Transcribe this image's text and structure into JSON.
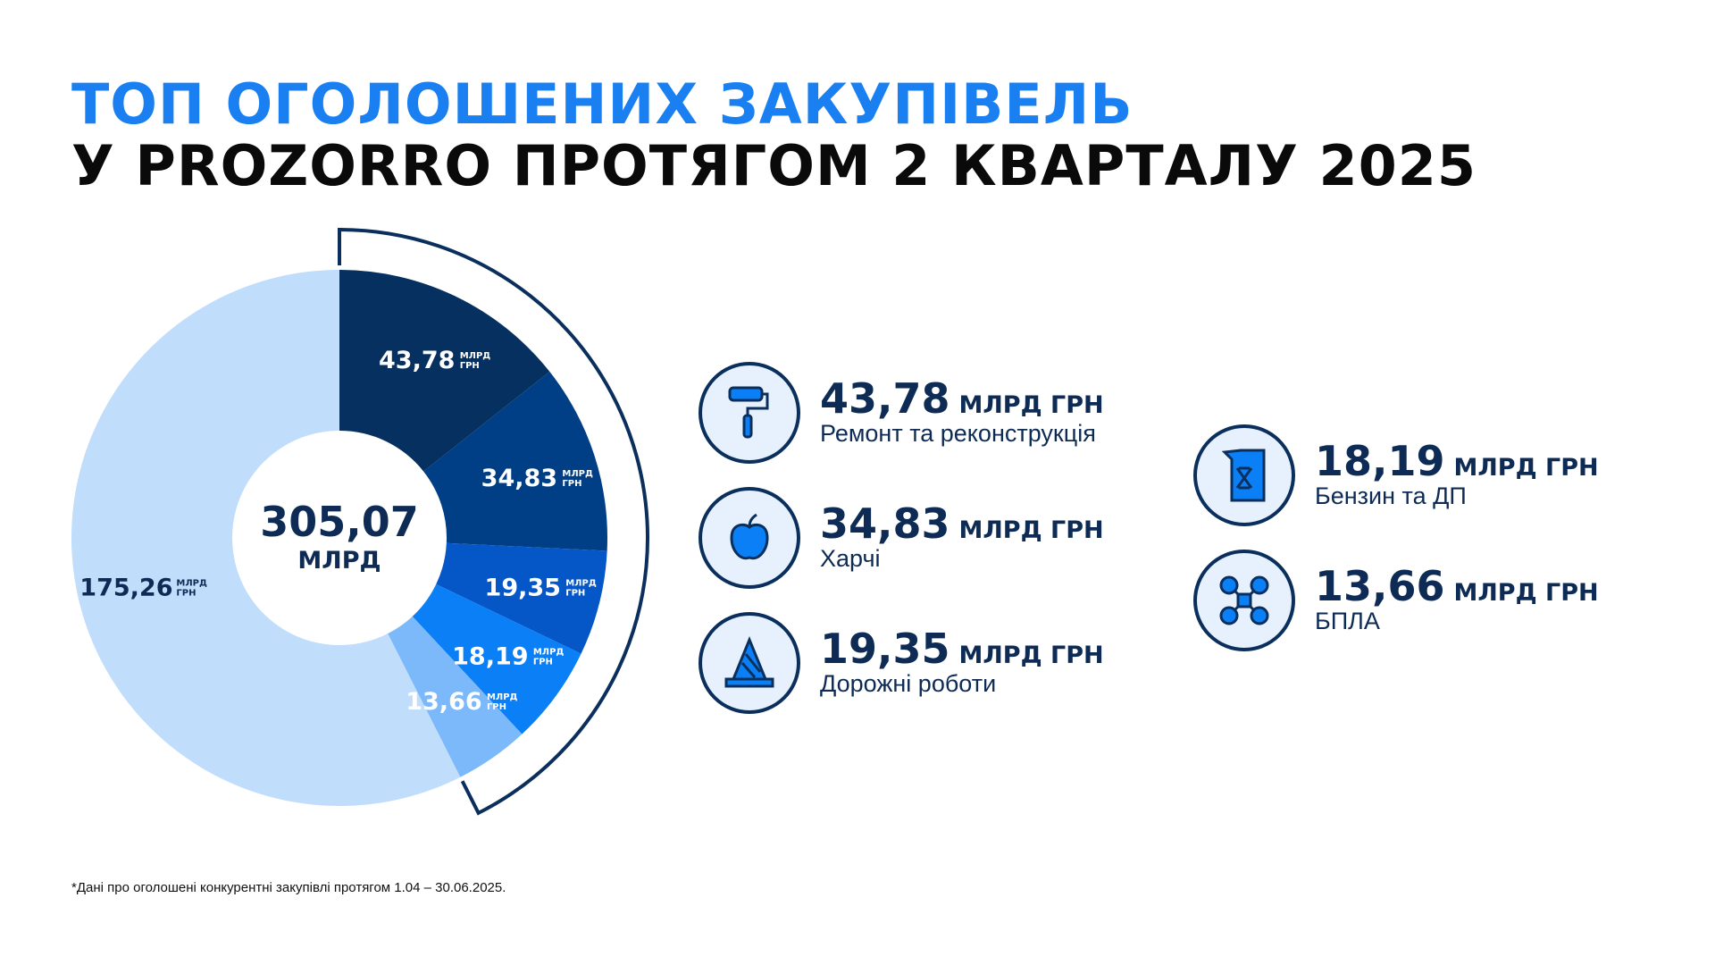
{
  "title": {
    "line1": "ТОП ОГОЛОШЕНИХ ЗАКУПІВЕЛЬ",
    "line2": "У PROZORRO ПРОТЯГОМ 2 КВАРТАЛУ 2025"
  },
  "chart_data": {
    "type": "pie",
    "subtype": "donut",
    "total": {
      "value": "305,07",
      "unit": "МЛРД"
    },
    "slice_unit": [
      "МЛРД",
      "ГРН"
    ],
    "slices": [
      {
        "value": 43.78,
        "label": "43,78",
        "color": "#05305f"
      },
      {
        "value": 34.83,
        "label": "34,83",
        "color": "#003f86"
      },
      {
        "value": 19.35,
        "label": "19,35",
        "color": "#0556c7"
      },
      {
        "value": 18.19,
        "label": "18,19",
        "color": "#0b80f6"
      },
      {
        "value": 13.66,
        "label": "13,66",
        "color": "#7bb9fb"
      },
      {
        "value": 175.26,
        "label": "175,26",
        "color": "#c0ddfb"
      }
    ],
    "bracket": "top five slices"
  },
  "legend": [
    {
      "value": "43,78",
      "unit": "МЛРД ГРН",
      "label": "Ремонт та реконструкція",
      "icon": "paint-roller-icon"
    },
    {
      "value": "34,83",
      "unit": "МЛРД ГРН",
      "label": "Харчі",
      "icon": "apple-icon"
    },
    {
      "value": "19,35",
      "unit": "МЛРД ГРН",
      "label": "Дорожні роботи",
      "icon": "traffic-cone-icon"
    },
    {
      "value": "18,19",
      "unit": "МЛРД ГРН",
      "label": "Бензин та ДП",
      "icon": "jerrycan-icon"
    },
    {
      "value": "13,66",
      "unit": "МЛРД ГРН",
      "label": "БПЛА",
      "icon": "drone-icon"
    }
  ],
  "footnote": "*Дані про оголошені конкурентні закупівлі протягом 1.04 – 30.06.2025."
}
